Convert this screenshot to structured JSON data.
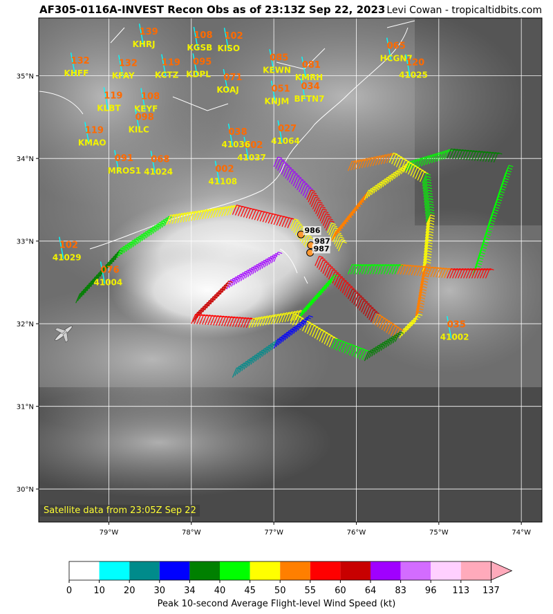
{
  "header": {
    "title": "AF305-0116A-INVEST Recon Obs as of 23:13Z Sep 22, 2023",
    "credit": "Levi Cowan - tropicaltidbits.com"
  },
  "satellite_note": "Satellite data from 23:05Z Sep 22",
  "map": {
    "lon_range": [
      -79.85,
      -73.75
    ],
    "lat_range": [
      29.6,
      35.7
    ],
    "lon_ticks": [
      {
        "value": -79,
        "label": "79°W"
      },
      {
        "value": -78,
        "label": "78°W"
      },
      {
        "value": -77,
        "label": "77°W"
      },
      {
        "value": -76,
        "label": "76°W"
      },
      {
        "value": -75,
        "label": "75°W"
      },
      {
        "value": -74,
        "label": "74°W"
      }
    ],
    "lat_ticks": [
      {
        "value": 35,
        "label": "35°N"
      },
      {
        "value": 34,
        "label": "34°N"
      },
      {
        "value": 33,
        "label": "33°N"
      },
      {
        "value": 32,
        "label": "32°N"
      },
      {
        "value": 31,
        "label": "31°N"
      },
      {
        "value": 30,
        "label": "30°N"
      }
    ],
    "stations": [
      {
        "code": "KHRJ",
        "value": "139",
        "lon": -78.63,
        "lat": 35.38
      },
      {
        "code": "KGSB",
        "value": "108",
        "lon": -77.97,
        "lat": 35.34
      },
      {
        "code": "KISO",
        "value": "102",
        "lon": -77.6,
        "lat": 35.33
      },
      {
        "code": "KHFF",
        "value": "132",
        "lon": -79.46,
        "lat": 35.03
      },
      {
        "code": "KFAY",
        "value": "132",
        "lon": -78.88,
        "lat": 35.0
      },
      {
        "code": "KCTZ",
        "value": "119",
        "lon": -78.36,
        "lat": 35.01
      },
      {
        "code": "KDPL",
        "value": "095",
        "lon": -77.98,
        "lat": 35.02
      },
      {
        "code": "KOAJ",
        "value": "071",
        "lon": -77.61,
        "lat": 34.83
      },
      {
        "code": "KLBT",
        "value": "119",
        "lon": -79.06,
        "lat": 34.61
      },
      {
        "code": "KEYF",
        "value": "108",
        "lon": -78.61,
        "lat": 34.6
      },
      {
        "code": "KMAO",
        "value": "119",
        "lon": -79.29,
        "lat": 34.19
      },
      {
        "code": "KILC",
        "value": "098",
        "lon": -78.68,
        "lat": 34.35
      },
      {
        "code": "41024",
        "value": "068",
        "lon": -78.49,
        "lat": 33.84
      },
      {
        "code": "MROS1",
        "value": "091",
        "lon": -78.93,
        "lat": 33.85
      },
      {
        "code": "41108",
        "value": "002",
        "lon": -77.71,
        "lat": 33.72
      },
      {
        "code": "41037",
        "value": "002",
        "lon": -77.36,
        "lat": 34.01
      },
      {
        "code": "41036",
        "value": "038",
        "lon": -77.55,
        "lat": 34.17
      },
      {
        "code": "41064",
        "value": "027",
        "lon": -76.95,
        "lat": 34.21
      },
      {
        "code": "KNJM",
        "value": "051",
        "lon": -77.03,
        "lat": 34.69
      },
      {
        "code": "BFTN7",
        "value": "034",
        "lon": -76.67,
        "lat": 34.72
      },
      {
        "code": "KEWN",
        "value": "085",
        "lon": -77.05,
        "lat": 35.07
      },
      {
        "code": "KMRH",
        "value": "081",
        "lon": -76.66,
        "lat": 34.98
      },
      {
        "code": "HCGN7",
        "value": "065",
        "lon": -75.63,
        "lat": 35.21
      },
      {
        "code": "41025",
        "value": "120",
        "lon": -75.4,
        "lat": 35.01
      },
      {
        "code": "41029",
        "value": "102",
        "lon": -79.6,
        "lat": 32.8
      },
      {
        "code": "41004",
        "value": "076",
        "lon": -79.1,
        "lat": 32.5
      },
      {
        "code": "41002",
        "value": "035",
        "lon": -74.9,
        "lat": 31.84
      }
    ],
    "pressures": [
      {
        "value": "986",
        "lon": -76.67,
        "lat": 33.08
      },
      {
        "value": "987",
        "lon": -76.55,
        "lat": 32.95
      },
      {
        "value": "987",
        "lon": -76.56,
        "lat": 32.86
      }
    ],
    "colors": {
      "wind_bins": [
        "#ffffff",
        "#00ffff",
        "#008b8b",
        "#0000ff",
        "#008000",
        "#00ff00",
        "#ffff00",
        "#ff7f00",
        "#ff0000",
        "#c80000",
        "#a000ff",
        "#d36cff",
        "#ffd0ff",
        "#ffaabb"
      ]
    }
  },
  "colorbar": {
    "label": "Peak 10-second Average Flight-level Wind Speed (kt)",
    "ticks": [
      "0",
      "10",
      "20",
      "30",
      "34",
      "40",
      "45",
      "50",
      "55",
      "60",
      "64",
      "83",
      "96",
      "113",
      "137"
    ],
    "colors": [
      "#ffffff",
      "#00ffff",
      "#008b8b",
      "#0000ff",
      "#008000",
      "#00ff00",
      "#ffff00",
      "#ff7f00",
      "#ff0000",
      "#c80000",
      "#a000ff",
      "#d36cff",
      "#ffd0ff",
      "#ffaabb"
    ]
  }
}
